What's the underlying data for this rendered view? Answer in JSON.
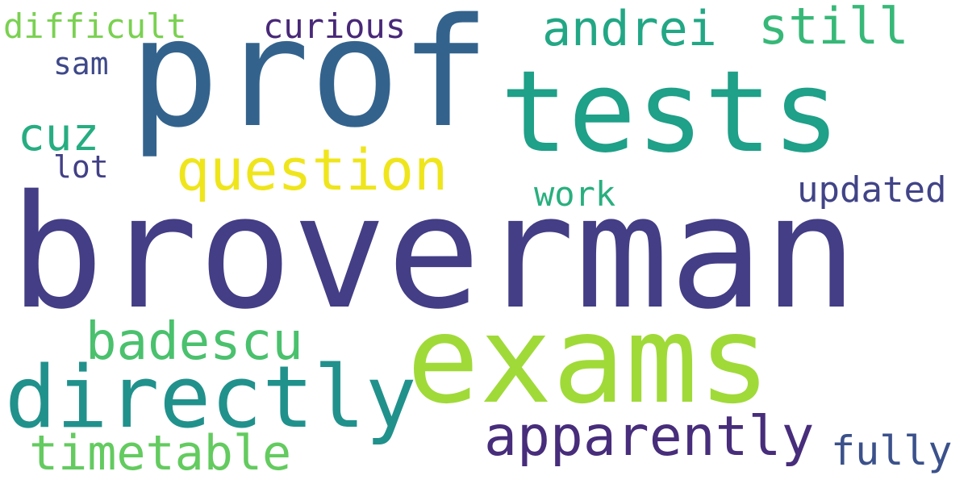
{
  "word_cloud": {
    "words": [
      {
        "text": "broverman",
        "color": "#433e85"
      },
      {
        "text": "exams",
        "color": "#a0da39"
      },
      {
        "text": "tests",
        "color": "#1fa088"
      },
      {
        "text": "prof",
        "color": "#33638d"
      },
      {
        "text": "directly",
        "color": "#21918c"
      },
      {
        "text": "question",
        "color": "#efe51c"
      },
      {
        "text": "apparently",
        "color": "#472d7b"
      },
      {
        "text": "badescu",
        "color": "#4ac16d"
      },
      {
        "text": "timetable",
        "color": "#63cb5f"
      },
      {
        "text": "andrei",
        "color": "#22a785"
      },
      {
        "text": "still",
        "color": "#37b878"
      },
      {
        "text": "fully",
        "color": "#3b518b"
      },
      {
        "text": "updated",
        "color": "#414487"
      },
      {
        "text": "cuz",
        "color": "#26ad81"
      },
      {
        "text": "work",
        "color": "#29af7f"
      },
      {
        "text": "curious",
        "color": "#482878"
      },
      {
        "text": "difficult",
        "color": "#7ad151"
      },
      {
        "text": "sam",
        "color": "#3e4989"
      },
      {
        "text": "lot",
        "color": "#424086"
      }
    ]
  }
}
